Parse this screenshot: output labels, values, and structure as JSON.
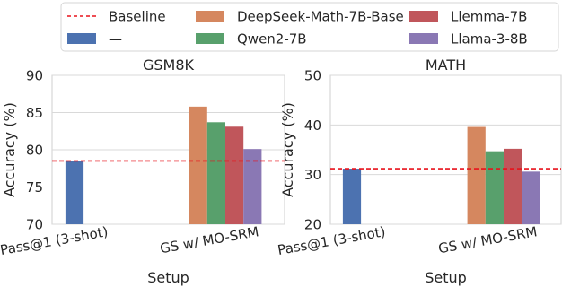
{
  "legend": {
    "location": "top",
    "entries": [
      {
        "label": "Baseline",
        "kind": "dashed-line",
        "color": "#e8121b"
      },
      {
        "label": "DeepSeek-Math-7B-Base",
        "kind": "patch",
        "color": "#d5875f"
      },
      {
        "label": "Llemma-7B",
        "kind": "patch",
        "color": "#c0565b"
      },
      {
        "label": "—",
        "kind": "patch",
        "color": "#4c72b0"
      },
      {
        "label": "Qwen2-7B",
        "kind": "patch",
        "color": "#58a06c"
      },
      {
        "label": "Llama-3-8B",
        "kind": "patch",
        "color": "#8a78b4"
      }
    ]
  },
  "chart_data": [
    {
      "type": "bar",
      "title": "GSM8K",
      "xlabel": "Setup",
      "ylabel": "Accuracy (%)",
      "ylim": [
        70,
        90
      ],
      "yticks": [
        70,
        75,
        80,
        85,
        90
      ],
      "categories": [
        "Pass@1 (3-shot)",
        "GS w/ MO-SRM"
      ],
      "grid": true,
      "baseline": 78.5,
      "series": [
        {
          "name": "—",
          "color": "#4c72b0",
          "values": [
            78.5,
            null
          ]
        },
        {
          "name": "DeepSeek-Math-7B-Base",
          "color": "#d5875f",
          "values": [
            null,
            85.8
          ]
        },
        {
          "name": "Qwen2-7B",
          "color": "#58a06c",
          "values": [
            null,
            83.7
          ]
        },
        {
          "name": "Llemma-7B",
          "color": "#c0565b",
          "values": [
            null,
            83.1
          ]
        },
        {
          "name": "Llama-3-8B",
          "color": "#8a78b4",
          "values": [
            null,
            80.1
          ]
        }
      ]
    },
    {
      "type": "bar",
      "title": "MATH",
      "xlabel": "Setup",
      "ylabel": "Accuracy (%)",
      "ylim": [
        20,
        50
      ],
      "yticks": [
        20,
        30,
        40,
        50
      ],
      "categories": [
        "Pass@1 (3-shot)",
        "GS w/ MO-SRM"
      ],
      "grid": true,
      "baseline": 31.2,
      "series": [
        {
          "name": "—",
          "color": "#4c72b0",
          "values": [
            31.2,
            null
          ]
        },
        {
          "name": "DeepSeek-Math-7B-Base",
          "color": "#d5875f",
          "values": [
            null,
            39.6
          ]
        },
        {
          "name": "Qwen2-7B",
          "color": "#58a06c",
          "values": [
            null,
            34.7
          ]
        },
        {
          "name": "Llemma-7B",
          "color": "#c0565b",
          "values": [
            null,
            35.2
          ]
        },
        {
          "name": "Llama-3-8B",
          "color": "#8a78b4",
          "values": [
            null,
            30.6
          ]
        }
      ]
    }
  ]
}
